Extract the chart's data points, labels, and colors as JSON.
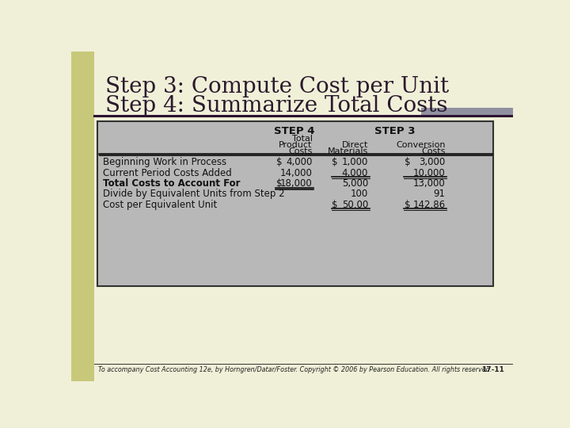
{
  "title_line1": "Step 3: Compute Cost per Unit",
  "title_line2": "Step 4: Summarize Total Costs",
  "title_fontsize": 20,
  "title_color": "#2b1a2e",
  "slide_bg": "#f0f0d8",
  "table_bg": "#b8b8b8",
  "footer_text": "To accompany Cost Accounting 12e, by Horngren/Datar/Foster. Copyright © 2006 by Pearson Education. All rights reserved.",
  "footer_page": "17-11",
  "header_step4": "STEP 4",
  "header_step3": "STEP 3",
  "rows": [
    {
      "label": "Beginning Work in Process",
      "c1_dollar": "$",
      "c1_val": "4,000",
      "c2_dollar": "$",
      "c2_val": "1,000",
      "c3_dollar": "$",
      "c3_val": "3,000",
      "bold": false,
      "underline_c1": false,
      "underline_c2": false,
      "underline_c3": false
    },
    {
      "label": "Current Period Costs Added",
      "c1_dollar": "",
      "c1_val": "14,000",
      "c2_dollar": "",
      "c2_val": "4,000",
      "c3_dollar": "",
      "c3_val": "10,000",
      "bold": false,
      "underline_c1": false,
      "underline_c2": true,
      "underline_c3": true
    },
    {
      "label": "Total Costs to Account For",
      "c1_dollar": "$",
      "c1_val": "18,000",
      "c2_dollar": "",
      "c2_val": "5,000",
      "c3_dollar": "",
      "c3_val": "13,000",
      "bold": true,
      "underline_c1": true,
      "underline_c2": false,
      "underline_c3": false
    },
    {
      "label": "Divide by Equivalent Units from Step 2",
      "c1_dollar": "",
      "c1_val": "",
      "c2_dollar": "",
      "c2_val": "100",
      "c3_dollar": "",
      "c3_val": "91",
      "bold": false,
      "underline_c1": false,
      "underline_c2": false,
      "underline_c3": false
    },
    {
      "label": "Cost per Equivalent Unit",
      "c1_dollar": "",
      "c1_val": "",
      "c2_dollar": "$",
      "c2_val": "50.00",
      "c3_dollar": "$",
      "c3_val": "142.86",
      "bold": false,
      "underline_c1": false,
      "underline_c2": true,
      "underline_c3": true
    }
  ]
}
